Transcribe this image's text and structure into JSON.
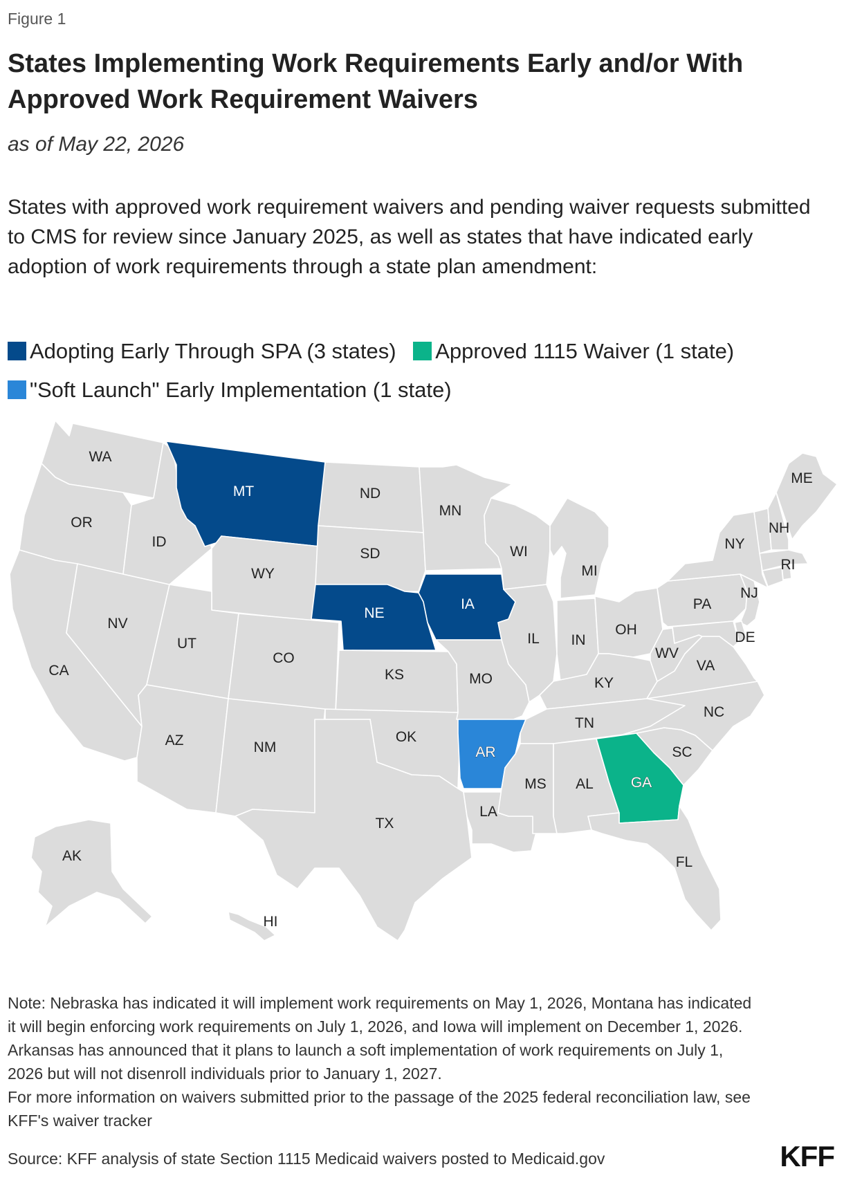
{
  "figure_label": "Figure 1",
  "title": "States Implementing Work Requirements Early and/or With Approved Work Requirement Waivers",
  "subtitle": "as of May 22, 2026",
  "description": "States with approved work requirement waivers and pending waiver requests submitted to CMS for review since January 2025, as well as states that have indicated early adoption of work requirements through a state plan amendment:",
  "legend": [
    {
      "label": "Adopting Early Through SPA (3 states)",
      "color": "#044a8b"
    },
    {
      "label": "Approved 1115 Waiver (1 state)",
      "color": "#0bb38a"
    },
    {
      "label": "\"Soft Launch\" Early Implementation (1 state)",
      "color": "#2a86d8"
    }
  ],
  "colors": {
    "default_state": "#dcdcdc",
    "border": "#ffffff"
  },
  "states": {
    "MT": {
      "label": "MT",
      "category": "Adopting Early Through SPA"
    },
    "NE": {
      "label": "NE",
      "category": "Adopting Early Through SPA"
    },
    "IA": {
      "label": "IA",
      "category": "Adopting Early Through SPA"
    },
    "AR": {
      "label": "AR",
      "category": "\"Soft Launch\" Early Implementation"
    },
    "GA": {
      "label": "GA",
      "category": "Approved 1115 Waiver"
    },
    "WA": {
      "label": "WA"
    },
    "OR": {
      "label": "OR"
    },
    "CA": {
      "label": "CA"
    },
    "NV": {
      "label": "NV"
    },
    "ID": {
      "label": "ID"
    },
    "UT": {
      "label": "UT"
    },
    "AZ": {
      "label": "AZ"
    },
    "WY": {
      "label": "WY"
    },
    "CO": {
      "label": "CO"
    },
    "NM": {
      "label": "NM"
    },
    "ND": {
      "label": "ND"
    },
    "SD": {
      "label": "SD"
    },
    "KS": {
      "label": "KS"
    },
    "OK": {
      "label": "OK"
    },
    "TX": {
      "label": "TX"
    },
    "MN": {
      "label": "MN"
    },
    "MO": {
      "label": "MO"
    },
    "LA": {
      "label": "LA"
    },
    "WI": {
      "label": "WI"
    },
    "IL": {
      "label": "IL"
    },
    "MS": {
      "label": "MS"
    },
    "MI": {
      "label": "MI"
    },
    "IN": {
      "label": "IN"
    },
    "KY": {
      "label": "KY"
    },
    "TN": {
      "label": "TN"
    },
    "AL": {
      "label": "AL"
    },
    "OH": {
      "label": "OH"
    },
    "WV": {
      "label": "WV"
    },
    "VA": {
      "label": "VA"
    },
    "NC": {
      "label": "NC"
    },
    "SC": {
      "label": "SC"
    },
    "FL": {
      "label": "FL"
    },
    "PA": {
      "label": "PA"
    },
    "NY": {
      "label": "NY"
    },
    "NJ": {
      "label": "NJ"
    },
    "DE": {
      "label": "DE"
    },
    "ME": {
      "label": "ME"
    },
    "NH": {
      "label": "NH"
    },
    "RI": {
      "label": "RI"
    },
    "AK": {
      "label": "AK"
    },
    "HI": {
      "label": "HI"
    }
  },
  "note": "Note: Nebraska has indicated it will implement work requirements on May 1, 2026, Montana has indicated it will begin enforcing work requirements on July 1, 2026, and Iowa will implement on December 1, 2026. Arkansas has announced that it plans to launch a soft implementation of work requirements on July 1, 2026 but will not disenroll individuals prior to January 1, 2027.",
  "note_more": "For more information on waivers submitted prior to the passage of the 2025 federal reconciliation law, see KFF's waiver tracker",
  "source": "Source: KFF analysis of state Section 1115 Medicaid waivers posted to Medicaid.gov",
  "logo": "KFF"
}
